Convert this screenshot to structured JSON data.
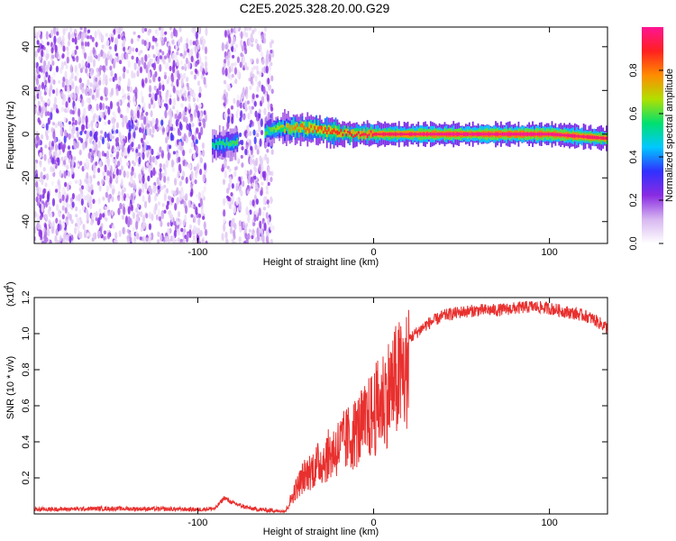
{
  "page": {
    "title": "C2E5.2025.328.20.00.G29"
  },
  "chart_data": [
    {
      "type": "heatmap",
      "title": "C2E5.2025.328.20.00.G29",
      "xlabel": "Height of straight line (km)",
      "ylabel": "Frequency (Hz)",
      "xlim": [
        -193,
        133
      ],
      "ylim": [
        -50,
        49
      ],
      "xticks": [
        -100,
        0,
        100
      ],
      "xtick_labels": [
        "-100",
        "0",
        "100"
      ],
      "yticks": [
        -40,
        -20,
        0,
        20,
        40
      ],
      "ytick_labels": [
        "-40",
        "-20",
        "0",
        "20",
        "40"
      ],
      "colorbar": {
        "label": "Normalized spectral amplitude",
        "range": [
          0.0,
          1.0
        ],
        "ticks": [
          0.0,
          0.2,
          0.4,
          0.6,
          0.8
        ],
        "tick_labels": [
          "0.0",
          "0.2",
          "0.4",
          "0.6",
          "0.8"
        ],
        "colormap": [
          "#ffffff",
          "#d7b7f0",
          "#8a2be2",
          "#3030ff",
          "#00c8ff",
          "#00e070",
          "#b0e000",
          "#ff8c00",
          "#ff2020",
          "#ff1493"
        ]
      },
      "noise_region": {
        "x_range": [
          -193,
          -57
        ],
        "gap_x_range": [
          -92,
          -90
        ],
        "amplitude": 0.25
      },
      "signal_band": [
        {
          "x": -92,
          "freq": -5,
          "amp": 0.55
        },
        {
          "x": -80,
          "freq": -4,
          "amp": 0.6
        },
        {
          "x": -60,
          "freq": 2,
          "amp": 0.6
        },
        {
          "x": -45,
          "freq": 3,
          "amp": 0.8
        },
        {
          "x": -30,
          "freq": 2,
          "amp": 0.85
        },
        {
          "x": -15,
          "freq": 0,
          "amp": 0.9
        },
        {
          "x": 0,
          "freq": 0,
          "amp": 0.95
        },
        {
          "x": 40,
          "freq": 0,
          "amp": 1.0
        },
        {
          "x": 100,
          "freq": 0,
          "amp": 1.0
        },
        {
          "x": 133,
          "freq": -2,
          "amp": 0.95
        }
      ]
    },
    {
      "type": "line",
      "xlabel": "Height of straight line (km)",
      "ylabel": "SNR (10 * v/v)",
      "y_multiplier": "(x10",
      "y_multiplier_exp": "4",
      "xlim": [
        -193,
        133
      ],
      "ylim": [
        0,
        1.2
      ],
      "xticks": [
        -100,
        0,
        100
      ],
      "xtick_labels": [
        "-100",
        "0",
        "100"
      ],
      "yticks": [
        0.2,
        0.4,
        0.6,
        0.8,
        1.0,
        1.2
      ],
      "ytick_labels": [
        "0.2",
        "0.4",
        "0.6",
        "0.8",
        "1.0",
        "1.2"
      ],
      "series": [
        {
          "name": "SNR",
          "color": "#e8302e",
          "envelope": {
            "x": [
              -193,
              -150,
              -100,
              -90,
              -85,
              -80,
              -70,
              -60,
              -50,
              -45,
              -40,
              -35,
              -30,
              -25,
              -20,
              -15,
              -10,
              -5,
              0,
              10,
              20,
              30,
              40,
              50,
              60,
              70,
              80,
              90,
              100,
              110,
              120,
              125,
              130,
              133
            ],
            "y": [
              0.025,
              0.03,
              0.025,
              0.03,
              0.09,
              0.06,
              0.03,
              0.02,
              0.02,
              0.15,
              0.25,
              0.3,
              0.35,
              0.4,
              0.45,
              0.5,
              0.55,
              0.6,
              0.68,
              0.85,
              0.97,
              1.05,
              1.1,
              1.12,
              1.13,
              1.13,
              1.14,
              1.15,
              1.14,
              1.12,
              1.1,
              1.08,
              1.05,
              1.03
            ]
          }
        }
      ]
    }
  ]
}
